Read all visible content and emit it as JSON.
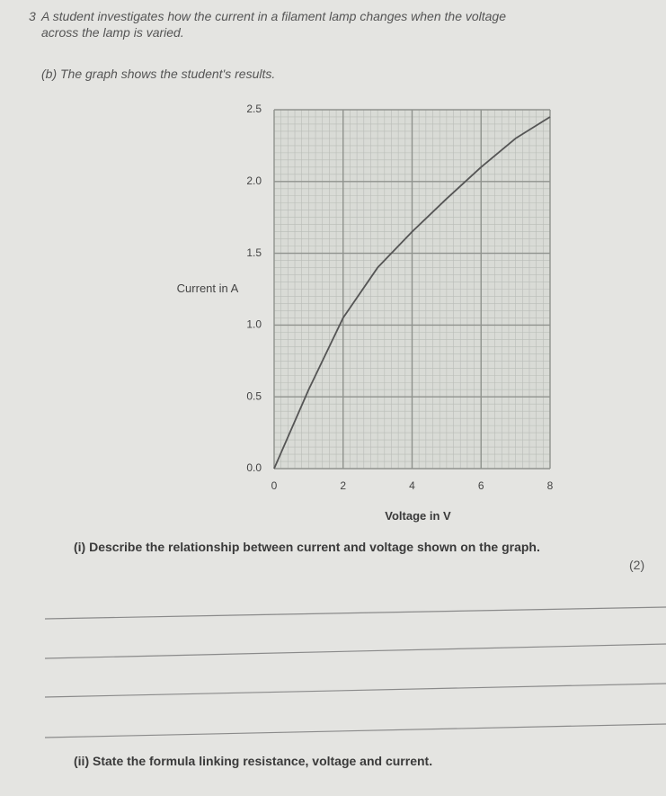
{
  "question": {
    "number": "3",
    "text": "A student investigates how the current in a filament lamp changes when the voltage",
    "text_line2": "across the lamp is varied.",
    "part_b": "(b) The graph shows the student's results.",
    "part_i": "(i) Describe the relationship between current and voltage shown on the graph.",
    "marks_i": "(2)",
    "part_ii": "(ii) State the formula linking resistance, voltage and current."
  },
  "chart_data": {
    "type": "line",
    "xlabel": "Voltage in V",
    "ylabel": "Current in A",
    "x": [
      0,
      1,
      2,
      3,
      4,
      5,
      6,
      7,
      8
    ],
    "series": [
      {
        "color": "#555555",
        "values": [
          0,
          0.55,
          1.05,
          1.4,
          1.65,
          1.88,
          2.1,
          2.3,
          2.45
        ]
      }
    ],
    "xlim": [
      0,
      8
    ],
    "ylim": [
      0,
      2.5
    ],
    "xticks": [
      0,
      2,
      4,
      6,
      8
    ],
    "yticks": [
      {
        "value": 0,
        "label": "0.0"
      },
      0.5,
      {
        "value": 1,
        "label": "1.0"
      },
      1.5,
      {
        "value": 2,
        "label": "2.0"
      },
      2.5
    ],
    "grid": true
  }
}
